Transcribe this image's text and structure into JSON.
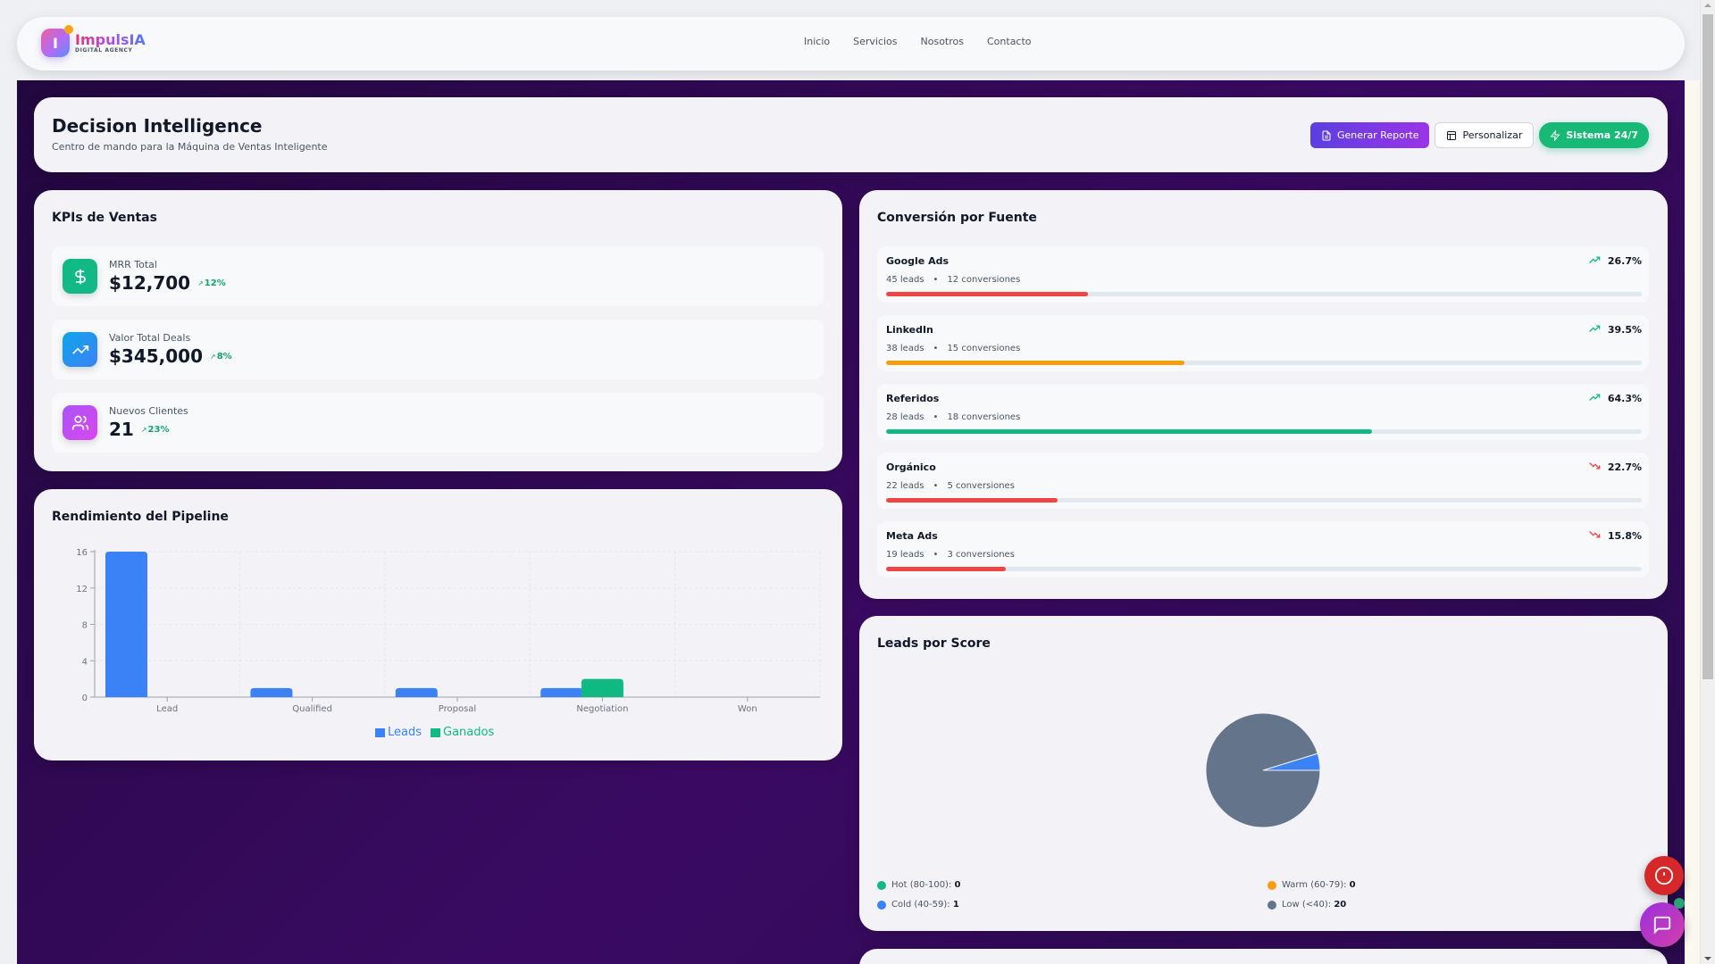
{
  "nav": {
    "brand": {
      "initial": "I",
      "name": "ImpulsIA",
      "tagline": "DIGITAL AGENCY"
    },
    "links": [
      "Inicio",
      "Servicios",
      "Nosotros",
      "Contacto"
    ]
  },
  "header": {
    "title": "Decision Intelligence",
    "subtitle": "Centro de mando para la Máquina de Ventas Inteligente",
    "actions": {
      "report": "Generar Reporte",
      "customize": "Personalizar",
      "system": "Sistema 24/7"
    }
  },
  "kpis": {
    "title": "KPIs de Ventas",
    "items": [
      {
        "label": "MRR Total",
        "value": "$12,700",
        "delta": "12%",
        "icon": "dollar-icon",
        "color_from": "#10b981",
        "color_to": "#14b88a"
      },
      {
        "label": "Valor Total Deals",
        "value": "$345,000",
        "delta": "8%",
        "icon": "trending-up-icon",
        "color_from": "#0ea5e9",
        "color_to": "#3b82f6"
      },
      {
        "label": "Nuevos Clientes",
        "value": "21",
        "delta": "23%",
        "icon": "users-icon",
        "color_from": "#a855f7",
        "color_to": "#d946ef"
      }
    ]
  },
  "pipeline": {
    "title": "Rendimiento del Pipeline",
    "legend": {
      "leads": "Leads",
      "won": "Ganados"
    }
  },
  "chart_data": {
    "type": "bar",
    "title": "Rendimiento del Pipeline",
    "categories": [
      "Lead",
      "Qualified",
      "Proposal",
      "Negotiation",
      "Won"
    ],
    "series": [
      {
        "name": "Leads",
        "color": "#3b82f6",
        "values": [
          16,
          1,
          1,
          1,
          0
        ]
      },
      {
        "name": "Ganados",
        "color": "#10b981",
        "values": [
          0,
          0,
          0,
          2,
          0
        ]
      }
    ],
    "yticks": [
      0,
      4,
      8,
      12,
      16
    ],
    "ylim": [
      0,
      16
    ],
    "grid": true,
    "legend_position": "bottom"
  },
  "conversion": {
    "title": "Conversión por Fuente",
    "leads_suffix": "leads",
    "conv_suffix": "conversiones",
    "sources": [
      {
        "name": "Google Ads",
        "leads": "45",
        "conversions": "12",
        "rate": "26.7%",
        "trend": "up",
        "fill": 26.7,
        "color": "#ef4444"
      },
      {
        "name": "LinkedIn",
        "leads": "38",
        "conversions": "15",
        "rate": "39.5%",
        "trend": "up",
        "fill": 39.5,
        "color": "#f59e0b"
      },
      {
        "name": "Referidos",
        "leads": "28",
        "conversions": "18",
        "rate": "64.3%",
        "trend": "up",
        "fill": 64.3,
        "color": "#10b981"
      },
      {
        "name": "Orgánico",
        "leads": "22",
        "conversions": "5",
        "rate": "22.7%",
        "trend": "down",
        "fill": 22.7,
        "color": "#ef4444"
      },
      {
        "name": "Meta Ads",
        "leads": "19",
        "conversions": "3",
        "rate": "15.8%",
        "trend": "down",
        "fill": 15.8,
        "color": "#ef4444"
      }
    ]
  },
  "score": {
    "title": "Leads por Score",
    "segments": [
      {
        "label": "Hot (80-100):",
        "value": "0",
        "color": "#10b981"
      },
      {
        "label": "Warm (60-79):",
        "value": "0",
        "color": "#f59e0b"
      },
      {
        "label": "Cold (40-59):",
        "value": "1",
        "color": "#3b82f6"
      },
      {
        "label": "Low (<40):",
        "value": "20",
        "color": "#64748b"
      }
    ]
  },
  "colors": {
    "accent_purple": "#7c3aed",
    "green": "#10b981",
    "red": "#ef4444",
    "blue": "#3b82f6",
    "amber": "#f59e0b",
    "slate": "#64748b"
  }
}
